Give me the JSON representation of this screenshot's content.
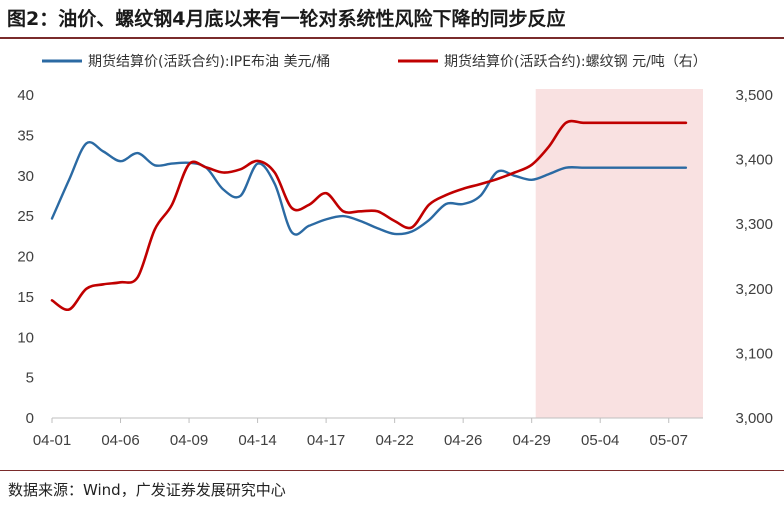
{
  "title": "图2：油价、螺纹钢4月底以来有一轮对系统性风险下降的同步反应",
  "source": "数据来源：Wind，广发证券发展研究中心",
  "chart_data": {
    "type": "line",
    "x_ticks": [
      "04-01",
      "04-06",
      "04-09",
      "04-14",
      "04-17",
      "04-22",
      "04-26",
      "04-29",
      "05-04",
      "05-07"
    ],
    "shaded_region": {
      "from": "04-29",
      "to": "05-08",
      "color": "#f9e1e1"
    },
    "y_left": {
      "range": [
        0,
        40
      ],
      "ticks": [
        "0",
        "5",
        "10",
        "15",
        "20",
        "25",
        "30",
        "35",
        "40"
      ]
    },
    "y_right": {
      "range": [
        3000,
        3500
      ],
      "ticks": [
        "3,000",
        "3,100",
        "3,200",
        "3,300",
        "3,400",
        "3,500"
      ]
    },
    "grid": false,
    "legend_position": "top",
    "series": [
      {
        "name": "期货结算价(活跃合约):IPE布油 美元/桶",
        "axis": "left",
        "color": "#2b6aa3",
        "x": [
          0,
          0.5,
          1,
          1.5,
          2,
          2.5,
          3,
          3.5,
          4,
          4.5,
          5,
          5.5,
          6,
          6.5,
          7,
          7.5,
          8,
          8.5,
          9,
          9.5,
          10,
          10.5,
          11,
          11.5,
          12,
          12.5,
          13,
          13.5,
          14,
          14.5,
          15,
          15.5,
          16,
          16.5,
          17,
          17.5,
          18,
          18.5,
          19
        ],
        "values": [
          24.7,
          29.5,
          34.0,
          33.0,
          31.8,
          32.8,
          31.3,
          31.5,
          31.6,
          31.0,
          28.3,
          27.5,
          31.5,
          29.0,
          23.0,
          23.8,
          24.6,
          25.0,
          24.4,
          23.5,
          22.8,
          23.1,
          24.5,
          26.5,
          26.5,
          27.5,
          30.5,
          30.0,
          29.5,
          30.2,
          31.0,
          31.0,
          31.0,
          31.0,
          31.0,
          31.0,
          31.0,
          31.0,
          31.0
        ]
      },
      {
        "name": "期货结算价(活跃合约):螺纹钢 元/吨（右）",
        "axis": "right",
        "color": "#c00000",
        "x": [
          0,
          0.5,
          1,
          1.5,
          2,
          2.5,
          3,
          3.5,
          4,
          4.5,
          5,
          5.5,
          6,
          6.5,
          7,
          7.5,
          8,
          8.5,
          9,
          9.5,
          10,
          10.5,
          11,
          11.5,
          12,
          12.5,
          13,
          13.5,
          14,
          14.5,
          15,
          15.5,
          16,
          16.5,
          17,
          17.5,
          18,
          18.5,
          19
        ],
        "values": [
          3182,
          3168,
          3200,
          3207,
          3210,
          3218,
          3292,
          3330,
          3393,
          3388,
          3380,
          3385,
          3398,
          3380,
          3325,
          3330,
          3348,
          3320,
          3320,
          3320,
          3305,
          3295,
          3330,
          3345,
          3355,
          3362,
          3370,
          3380,
          3392,
          3420,
          3457,
          3457,
          3457,
          3457,
          3457,
          3457,
          3457,
          3457,
          3457
        ]
      }
    ]
  }
}
